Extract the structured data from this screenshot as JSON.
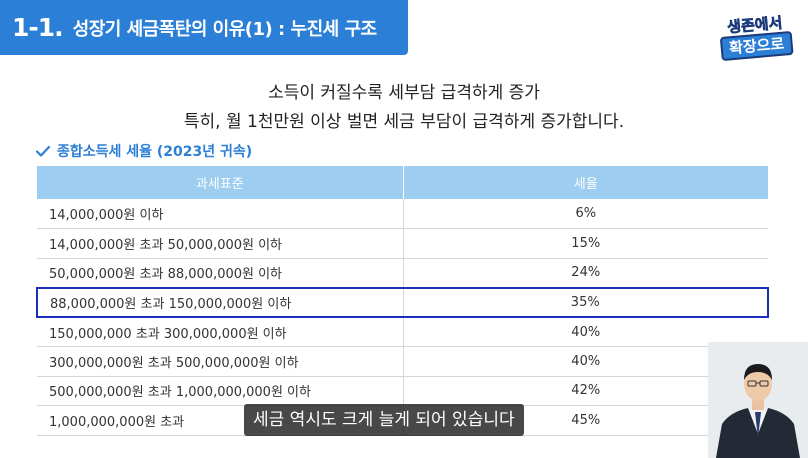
{
  "header": {
    "number": "1-1.",
    "title": "성장기 세금폭탄의 이유(1) : 누진세 구조"
  },
  "logo": {
    "line1": "생존에서",
    "line2": "확장으로"
  },
  "headline": {
    "line1": "소득이 커질수록 세부담 급격하게 증가",
    "line2": "특히, 월 1천만원 이상 벌면 세금 부담이 급격하게 증가합니다."
  },
  "section": {
    "label": "종합소득세 세율 (2023년 귀속)",
    "icon": "check-icon"
  },
  "table": {
    "headers": [
      "과세표준",
      "세율"
    ],
    "rows": [
      {
        "range": "14,000,000원 이하",
        "rate": "6%"
      },
      {
        "range": "14,000,000원 초과 50,000,000원 이하",
        "rate": "15%"
      },
      {
        "range": "50,000,000원 초과 88,000,000원 이하",
        "rate": "24%"
      },
      {
        "range": "88,000,000원 초과 150,000,000원 이하",
        "rate": "35%"
      },
      {
        "range": "150,000,000 초과 300,000,000원 이하",
        "rate": "40%"
      },
      {
        "range": "300,000,000원 초과 500,000,000원 이하",
        "rate": "40%"
      },
      {
        "range": "500,000,000원 초과 1,000,000,000원 이하",
        "rate": "42%"
      },
      {
        "range": "1,000,000,000원 초과",
        "rate": "45%"
      }
    ]
  },
  "subtitle": "세금 역시도 크게 늘게 되어 있습니다",
  "colors": {
    "accent": "#2c7fd6",
    "table_header": "#9dcdf0",
    "highlight_border": "#1a2fb8"
  }
}
